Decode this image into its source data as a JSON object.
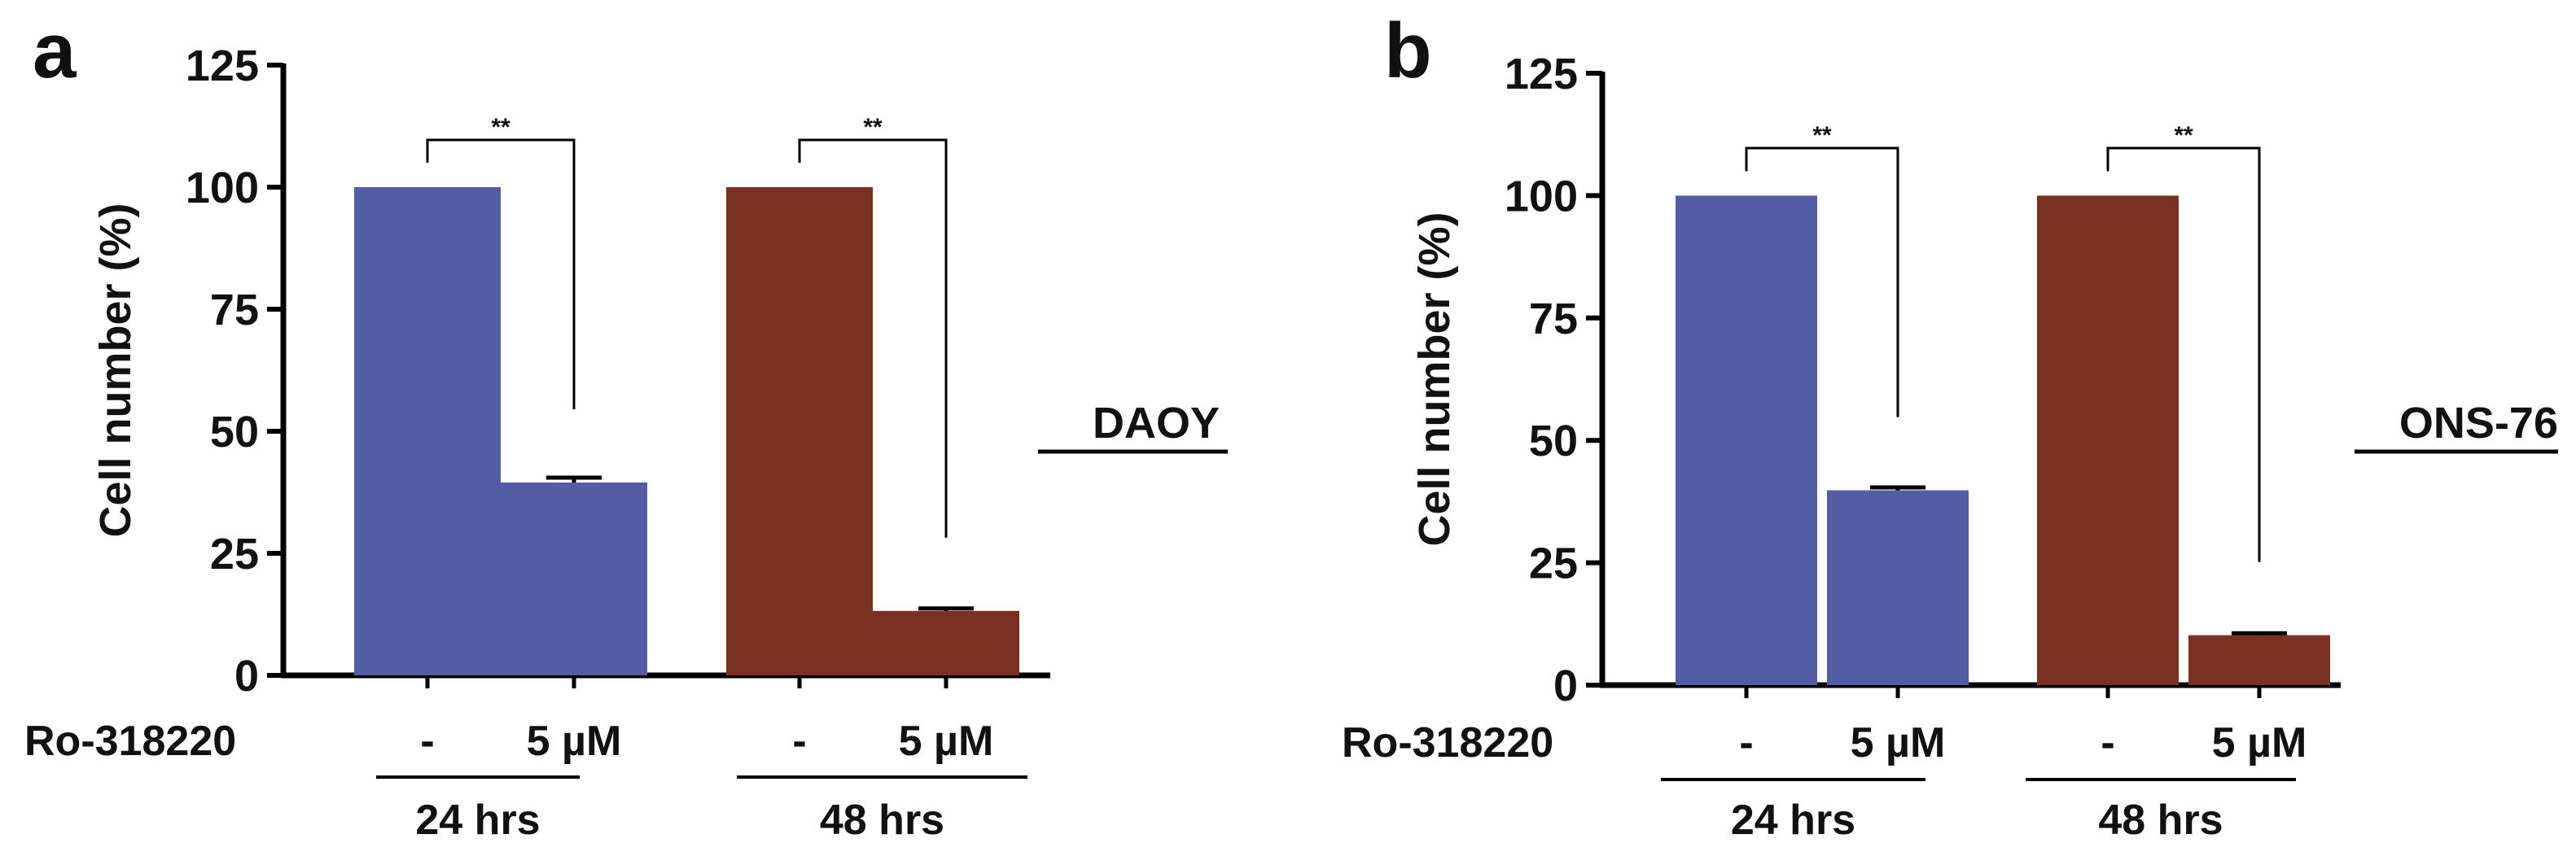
{
  "chart_data": [
    {
      "type": "bar",
      "panel": "a",
      "cell_line": "DAOY",
      "ylabel": "Cell number (%)",
      "ylim": [
        0,
        125
      ],
      "yticks": [
        "0",
        "25",
        "50",
        "75",
        "100",
        "125"
      ],
      "treatment_label": "Ro-318220",
      "groups": [
        {
          "period": "24 hrs",
          "color": "#525da3",
          "bars": [
            {
              "condition": "-",
              "value": 100,
              "error": 0
            },
            {
              "condition": "5 µM",
              "value": 39.5,
              "error": 1
            }
          ],
          "significance": "**"
        },
        {
          "period": "48 hrs",
          "color": "#7b3121",
          "bars": [
            {
              "condition": "-",
              "value": 100,
              "error": 0
            },
            {
              "condition": "5 µM",
              "value": 13.2,
              "error": 0.5
            }
          ],
          "significance": "**"
        }
      ]
    },
    {
      "type": "bar",
      "panel": "b",
      "cell_line": "ONS-76",
      "ylabel": "Cell number (%)",
      "ylim": [
        0,
        125
      ],
      "yticks": [
        "0",
        "25",
        "50",
        "75",
        "100",
        "125"
      ],
      "treatment_label": "Ro-318220",
      "groups": [
        {
          "period": "24 hrs",
          "color": "#525da3",
          "bars": [
            {
              "condition": "-",
              "value": 100,
              "error": 0
            },
            {
              "condition": "5 µM",
              "value": 39.8,
              "error": 0.6
            }
          ],
          "significance": "**"
        },
        {
          "period": "48 hrs",
          "color": "#7b3121",
          "bars": [
            {
              "condition": "-",
              "value": 100,
              "error": 0
            },
            {
              "condition": "5 µM",
              "value": 10.2,
              "error": 0.4
            }
          ],
          "significance": "**"
        }
      ]
    }
  ]
}
